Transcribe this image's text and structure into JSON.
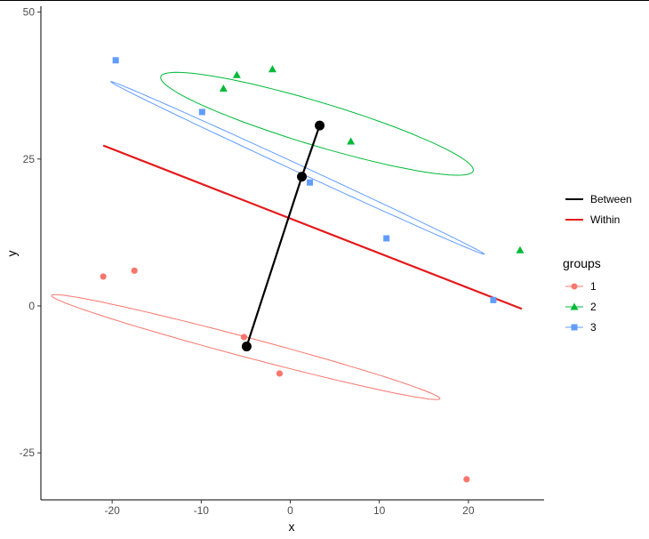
{
  "chart_data": {
    "type": "scatter",
    "xlabel": "x",
    "ylabel": "y",
    "xlim": [
      -28,
      28.5
    ],
    "ylim": [
      -33,
      51
    ],
    "x_ticks": [
      -20,
      -10,
      0,
      10,
      20
    ],
    "y_ticks": [
      -25,
      0,
      25,
      50
    ],
    "x_tick_labels": [
      "-20",
      "-10",
      "0",
      "10",
      "20"
    ],
    "y_tick_labels": [
      "-25",
      "0",
      "25",
      "50"
    ],
    "grid": false,
    "line_legend": {
      "entries": [
        {
          "label": "Between",
          "color": "#000000"
        },
        {
          "label": "Within",
          "color": "#e41a1c"
        }
      ]
    },
    "groups_legend": {
      "title": "groups",
      "entries": [
        {
          "label": "1",
          "color": "#f8766d",
          "shape": "circle"
        },
        {
          "label": "2",
          "color": "#00ba38",
          "shape": "triangle"
        },
        {
          "label": "3",
          "color": "#619cff",
          "shape": "square"
        }
      ]
    },
    "series": [
      {
        "group": "1",
        "color": "#f8766d",
        "shape": "circle",
        "x": [
          -21,
          -17.5,
          -5.2,
          -1.2,
          19.8
        ],
        "y": [
          5,
          6,
          -5.3,
          -11.5,
          -29.5
        ]
      },
      {
        "group": "2",
        "color": "#00ba38",
        "shape": "triangle",
        "x": [
          -7.5,
          -6,
          -2,
          6.8,
          25.8
        ],
        "y": [
          37,
          39.3,
          40.3,
          28,
          9.5
        ]
      },
      {
        "group": "3",
        "color": "#619cff",
        "shape": "square",
        "x": [
          -19.6,
          -9.9,
          2.2,
          10.8,
          22.8
        ],
        "y": [
          41.8,
          33,
          21,
          11.5,
          1
        ]
      }
    ],
    "group_means": [
      {
        "group": "1",
        "x": -4.9,
        "y": -6.9
      },
      {
        "group": "2",
        "x": 3.3,
        "y": 30.7
      },
      {
        "group": "3",
        "x": 1.3,
        "y": 22
      }
    ],
    "between_line": {
      "color": "#000000",
      "points": [
        [
          -4.9,
          -6.9
        ],
        [
          1.3,
          22
        ],
        [
          3.3,
          30.7
        ]
      ]
    },
    "within_line": {
      "color": "#e41a1c",
      "x": [
        -21,
        26
      ],
      "y": [
        27.3,
        -0.5
      ]
    },
    "ellipses": [
      {
        "group": "1",
        "color": "#f8766d",
        "cx": -5,
        "cy": -7,
        "rx": 23.5,
        "ry": 1.6,
        "angle_deg": 22
      },
      {
        "group": "2",
        "color": "#00ba38",
        "cx": 3,
        "cy": 31,
        "rx": 19.3,
        "ry": 3.5,
        "angle_deg": 25
      },
      {
        "group": "3",
        "color": "#619cff",
        "cx": 0.8,
        "cy": 23.5,
        "rx": 25.6,
        "ry": 0.55,
        "angle_deg": 35
      }
    ]
  }
}
